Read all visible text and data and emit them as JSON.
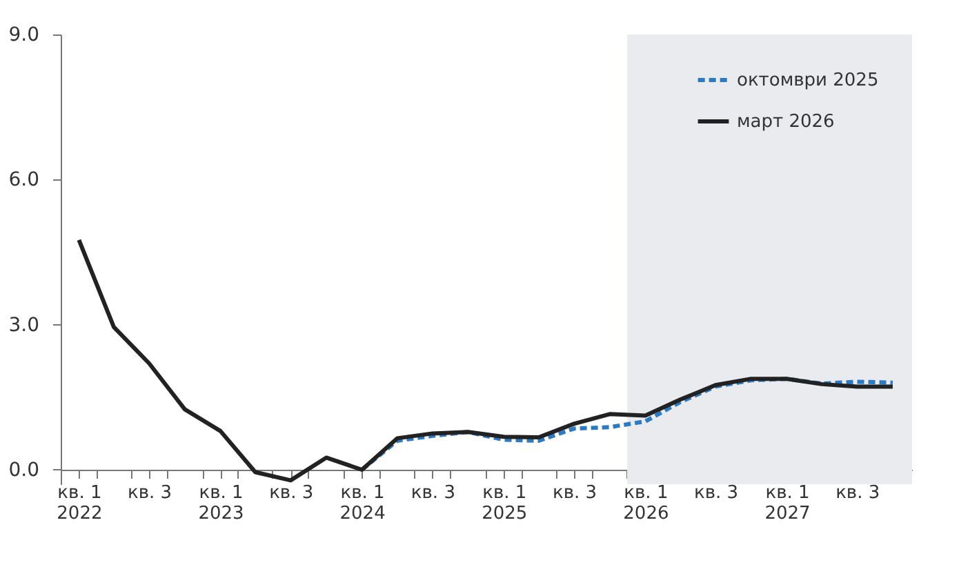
{
  "chart_data": {
    "type": "line",
    "x": [
      "2022-01",
      "2022-04",
      "2022-07",
      "2022-10",
      "2023-01",
      "2023-04",
      "2023-07",
      "2023-10",
      "2024-01",
      "2024-04",
      "2024-07",
      "2024-10",
      "2025-01",
      "2025-04",
      "2025-07",
      "2025-10",
      "2026-01",
      "2026-04",
      "2026-07",
      "2026-10",
      "2027-01",
      "2027-04",
      "2027-07",
      "2027-10"
    ],
    "series": [
      {
        "name": "октомври  2025",
        "color": "#2b7bc4",
        "line_style": "dashed",
        "values": [
          null,
          null,
          null,
          null,
          null,
          null,
          null,
          null,
          0.0,
          0.6,
          0.7,
          0.78,
          0.62,
          0.6,
          0.85,
          0.88,
          1.0,
          1.4,
          1.72,
          1.85,
          1.88,
          1.78,
          1.82,
          1.8
        ]
      },
      {
        "name": "март 2026",
        "color": "#222222",
        "line_style": "solid",
        "values": [
          4.75,
          2.95,
          2.2,
          1.25,
          0.8,
          -0.05,
          -0.22,
          0.25,
          0.0,
          0.65,
          0.75,
          0.78,
          0.68,
          0.67,
          0.95,
          1.15,
          1.12,
          1.45,
          1.75,
          1.88,
          1.88,
          1.77,
          1.72,
          1.72
        ]
      }
    ],
    "xlim": [
      "2021-11-15",
      "2027-11-20"
    ],
    "xticks": [
      {
        "value": "2022-01",
        "label": "кв. 1\n2022"
      },
      {
        "value": "2022-02-15",
        "label": null
      },
      {
        "value": "2022-05-15",
        "label": null
      },
      {
        "value": "2022-07",
        "label": "кв. 3"
      },
      {
        "value": "2022-08-15",
        "label": null
      },
      {
        "value": "2022-11-15",
        "label": null
      },
      {
        "value": "2023-01",
        "label": "кв. 1\n2023"
      },
      {
        "value": "2023-02-15",
        "label": null
      },
      {
        "value": "2023-05-15",
        "label": null
      },
      {
        "value": "2023-07",
        "label": "кв. 3"
      },
      {
        "value": "2023-08-15",
        "label": null
      },
      {
        "value": "2023-11-15",
        "label": null
      },
      {
        "value": "2024-01",
        "label": "кв. 1\n2024"
      },
      {
        "value": "2024-02-15",
        "label": null
      },
      {
        "value": "2024-05-15",
        "label": null
      },
      {
        "value": "2024-07",
        "label": "кв. 3"
      },
      {
        "value": "2024-08-15",
        "label": null
      },
      {
        "value": "2024-11-15",
        "label": null
      },
      {
        "value": "2025-01",
        "label": "кв. 1\n2025"
      },
      {
        "value": "2025-02-15",
        "label": null
      },
      {
        "value": "2025-05-15",
        "label": null
      },
      {
        "value": "2025-07",
        "label": "кв. 3"
      },
      {
        "value": "2025-08-15",
        "label": null
      },
      {
        "value": "2025-11-15",
        "label": null
      },
      {
        "value": "2026-01",
        "label": "кв. 1\n2026"
      },
      {
        "value": "2026-02-15",
        "label": null
      },
      {
        "value": "2026-05-15",
        "label": null
      },
      {
        "value": "2026-07",
        "label": "кв. 3"
      },
      {
        "value": "2026-08-15",
        "label": null
      },
      {
        "value": "2026-11-15",
        "label": null
      },
      {
        "value": "2027-01",
        "label": "кв. 1\n2027"
      },
      {
        "value": "2027-02-15",
        "label": null
      },
      {
        "value": "2027-05-15",
        "label": null
      },
      {
        "value": "2027-07",
        "label": "кв. 3"
      },
      {
        "value": "2027-08-15",
        "label": null
      }
    ],
    "ylim": [
      -0.3,
      9
    ],
    "yticks": [
      {
        "value": 0,
        "label": "0.0"
      },
      {
        "value": 3,
        "label": "3.0"
      },
      {
        "value": 6,
        "label": "6.0"
      },
      {
        "value": 9,
        "label": "9.0"
      }
    ],
    "bands": [
      {
        "axis": "x",
        "from": "2025-11-15",
        "to": "2027-11-20",
        "color": "#e9ebee"
      }
    ],
    "legend": "top right",
    "grid": false
  }
}
